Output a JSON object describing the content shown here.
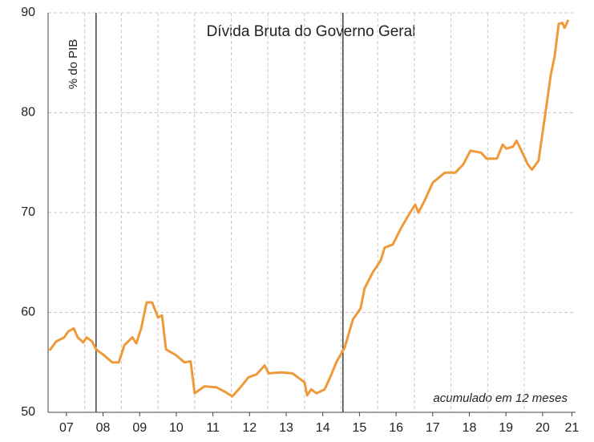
{
  "chart_data": {
    "type": "line",
    "title": "Dívida Bruta do Governo Geral",
    "y_label": "% do PIB",
    "annotation": "acumulado em 12 meses",
    "xlim": [
      2007,
      2021.4
    ],
    "ylim": [
      50,
      90
    ],
    "yticks": [
      50,
      60,
      70,
      80,
      90
    ],
    "xticks": [
      {
        "value": 2007.5,
        "label": "07"
      },
      {
        "value": 2008.5,
        "label": "08"
      },
      {
        "value": 2009.5,
        "label": "09"
      },
      {
        "value": 2010.5,
        "label": "10"
      },
      {
        "value": 2011.5,
        "label": "11"
      },
      {
        "value": 2012.5,
        "label": "12"
      },
      {
        "value": 2013.5,
        "label": "13"
      },
      {
        "value": 2014.5,
        "label": "14"
      },
      {
        "value": 2015.5,
        "label": "15"
      },
      {
        "value": 2016.5,
        "label": "16"
      },
      {
        "value": 2017.5,
        "label": "17"
      },
      {
        "value": 2018.5,
        "label": "18"
      },
      {
        "value": 2019.5,
        "label": "19"
      },
      {
        "value": 2020.5,
        "label": "20"
      },
      {
        "value": 2021.3,
        "label": "21"
      }
    ],
    "xgrid": [
      2008,
      2009,
      2010,
      2011,
      2012,
      2013,
      2014,
      2015,
      2016,
      2017,
      2018,
      2019,
      2020
    ],
    "vlines": [
      2008.31,
      2015.05
    ],
    "grid": true,
    "series": [
      {
        "name": "Dívida Bruta",
        "color": "#ee9a3a",
        "x": [
          2007.04,
          2007.22,
          2007.44,
          2007.55,
          2007.7,
          2007.81,
          2007.96,
          2008.05,
          2008.2,
          2008.31,
          2008.53,
          2008.75,
          2008.93,
          2009.08,
          2009.3,
          2009.41,
          2009.54,
          2009.69,
          2009.84,
          2010.0,
          2010.11,
          2010.22,
          2010.5,
          2010.72,
          2010.89,
          2011.0,
          2011.27,
          2011.6,
          2011.81,
          2012.03,
          2012.25,
          2012.47,
          2012.69,
          2012.91,
          2013.02,
          2013.35,
          2013.67,
          2014.0,
          2014.07,
          2014.18,
          2014.33,
          2014.55,
          2014.7,
          2014.88,
          2015.1,
          2015.32,
          2015.53,
          2015.64,
          2015.86,
          2016.08,
          2016.19,
          2016.41,
          2016.63,
          2016.85,
          2017.02,
          2017.11,
          2017.28,
          2017.5,
          2017.83,
          2018.12,
          2018.33,
          2018.53,
          2018.82,
          2018.97,
          2019.25,
          2019.41,
          2019.51,
          2019.69,
          2019.79,
          2020.0,
          2020.1,
          2020.21,
          2020.39,
          2020.61,
          2020.72,
          2020.83,
          2020.94,
          2021.04,
          2021.1,
          2021.2
        ],
        "values": [
          56.2,
          57.1,
          57.5,
          58.1,
          58.4,
          57.5,
          57.0,
          57.5,
          57.1,
          56.3,
          55.7,
          55.0,
          55.0,
          56.7,
          57.5,
          56.9,
          58.4,
          61.0,
          61.0,
          59.5,
          59.7,
          56.3,
          55.7,
          55.0,
          55.1,
          51.9,
          52.6,
          52.5,
          52.1,
          51.6,
          52.5,
          53.5,
          53.8,
          54.7,
          53.9,
          54.0,
          53.9,
          53.0,
          51.7,
          52.3,
          51.9,
          52.3,
          53.5,
          55.1,
          56.5,
          59.3,
          60.4,
          62.4,
          64.0,
          65.2,
          66.5,
          66.8,
          68.4,
          69.8,
          70.8,
          70.0,
          71.2,
          73.0,
          74.0,
          74.0,
          74.8,
          76.2,
          76.0,
          75.4,
          75.4,
          76.8,
          76.4,
          76.6,
          77.2,
          75.6,
          74.8,
          74.3,
          75.2,
          80.8,
          83.7,
          85.7,
          88.9,
          89.0,
          88.5,
          89.3
        ]
      }
    ]
  }
}
